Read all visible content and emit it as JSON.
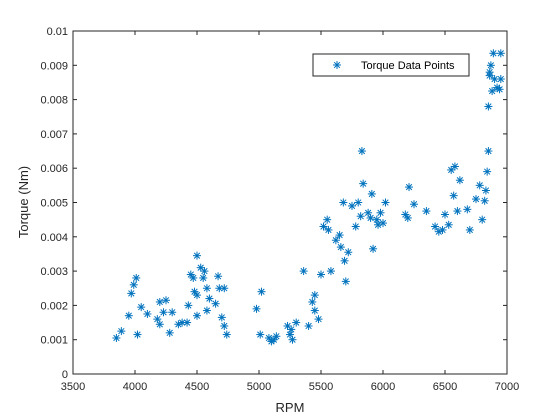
{
  "chart_data": {
    "type": "scatter",
    "title": "",
    "xlabel": "RPM",
    "ylabel": "Torque (Nm)",
    "xlim": [
      3500,
      7000
    ],
    "ylim": [
      0,
      0.01
    ],
    "xticks": [
      3500,
      4000,
      4500,
      5000,
      5500,
      6000,
      6500,
      7000
    ],
    "xtick_labels": [
      "3500",
      "4000",
      "4500",
      "5000",
      "5500",
      "6000",
      "6500",
      "7000"
    ],
    "yticks": [
      0,
      0.001,
      0.002,
      0.003,
      0.004,
      0.005,
      0.006,
      0.007,
      0.008,
      0.009,
      0.01
    ],
    "ytick_labels": [
      "0",
      "0.001",
      "0.002",
      "0.003",
      "0.004",
      "0.005",
      "0.006",
      "0.007",
      "0.008",
      "0.009",
      "0.01"
    ],
    "grid": false,
    "legend_position": "top-right",
    "marker": "asterisk",
    "series": [
      {
        "name": "Torque Data Points",
        "color": "#0072BD",
        "points": [
          [
            3850,
            0.00105
          ],
          [
            3890,
            0.00125
          ],
          [
            3950,
            0.0017
          ],
          [
            3970,
            0.00235
          ],
          [
            3990,
            0.0026
          ],
          [
            4010,
            0.0028
          ],
          [
            4020,
            0.00115
          ],
          [
            4050,
            0.00195
          ],
          [
            4100,
            0.00175
          ],
          [
            4180,
            0.0016
          ],
          [
            4200,
            0.0021
          ],
          [
            4200,
            0.00145
          ],
          [
            4230,
            0.0018
          ],
          [
            4250,
            0.00215
          ],
          [
            4280,
            0.0012
          ],
          [
            4300,
            0.0018
          ],
          [
            4350,
            0.00145
          ],
          [
            4380,
            0.0015
          ],
          [
            4420,
            0.0015
          ],
          [
            4430,
            0.002
          ],
          [
            4450,
            0.0029
          ],
          [
            4470,
            0.0028
          ],
          [
            4480,
            0.0024
          ],
          [
            4500,
            0.0017
          ],
          [
            4500,
            0.0023
          ],
          [
            4500,
            0.00345
          ],
          [
            4530,
            0.0031
          ],
          [
            4550,
            0.0028
          ],
          [
            4560,
            0.003
          ],
          [
            4580,
            0.0025
          ],
          [
            4580,
            0.00185
          ],
          [
            4600,
            0.0022
          ],
          [
            4650,
            0.00205
          ],
          [
            4670,
            0.00285
          ],
          [
            4680,
            0.0025
          ],
          [
            4700,
            0.00165
          ],
          [
            4720,
            0.0014
          ],
          [
            4720,
            0.0025
          ],
          [
            4740,
            0.00115
          ],
          [
            4980,
            0.0019
          ],
          [
            5020,
            0.0024
          ],
          [
            5010,
            0.00115
          ],
          [
            5080,
            0.00105
          ],
          [
            5100,
            0.00095
          ],
          [
            5120,
            0.001
          ],
          [
            5140,
            0.0011
          ],
          [
            5230,
            0.0014
          ],
          [
            5250,
            0.00115
          ],
          [
            5260,
            0.0013
          ],
          [
            5270,
            0.001
          ],
          [
            5300,
            0.0015
          ],
          [
            5360,
            0.003
          ],
          [
            5400,
            0.0014
          ],
          [
            5430,
            0.0021
          ],
          [
            5450,
            0.0023
          ],
          [
            5450,
            0.00185
          ],
          [
            5480,
            0.0016
          ],
          [
            5500,
            0.0029
          ],
          [
            5520,
            0.0043
          ],
          [
            5550,
            0.0045
          ],
          [
            5560,
            0.0042
          ],
          [
            5580,
            0.003
          ],
          [
            5620,
            0.0039
          ],
          [
            5650,
            0.00405
          ],
          [
            5660,
            0.0037
          ],
          [
            5680,
            0.005
          ],
          [
            5690,
            0.0033
          ],
          [
            5700,
            0.0027
          ],
          [
            5720,
            0.00355
          ],
          [
            5750,
            0.0049
          ],
          [
            5780,
            0.0043
          ],
          [
            5800,
            0.005
          ],
          [
            5820,
            0.0046
          ],
          [
            5830,
            0.0065
          ],
          [
            5840,
            0.00555
          ],
          [
            5880,
            0.0047
          ],
          [
            5900,
            0.00455
          ],
          [
            5910,
            0.00525
          ],
          [
            5920,
            0.00365
          ],
          [
            5950,
            0.0045
          ],
          [
            5960,
            0.00435
          ],
          [
            5980,
            0.0047
          ],
          [
            6000,
            0.0044
          ],
          [
            6020,
            0.005
          ],
          [
            6180,
            0.00465
          ],
          [
            6200,
            0.00455
          ],
          [
            6210,
            0.00545
          ],
          [
            6250,
            0.00495
          ],
          [
            6350,
            0.00475
          ],
          [
            6420,
            0.0043
          ],
          [
            6450,
            0.00415
          ],
          [
            6480,
            0.0042
          ],
          [
            6500,
            0.00465
          ],
          [
            6530,
            0.00435
          ],
          [
            6550,
            0.00595
          ],
          [
            6570,
            0.0052
          ],
          [
            6580,
            0.00605
          ],
          [
            6600,
            0.00475
          ],
          [
            6620,
            0.00565
          ],
          [
            6680,
            0.0048
          ],
          [
            6700,
            0.0042
          ],
          [
            6750,
            0.0051
          ],
          [
            6780,
            0.0055
          ],
          [
            6800,
            0.0045
          ],
          [
            6820,
            0.00505
          ],
          [
            6830,
            0.00535
          ],
          [
            6840,
            0.0059
          ],
          [
            6850,
            0.0065
          ],
          [
            6850,
            0.0078
          ],
          [
            6860,
            0.0087
          ],
          [
            6860,
            0.0088
          ],
          [
            6870,
            0.009
          ],
          [
            6880,
            0.00825
          ],
          [
            6890,
            0.00935
          ],
          [
            6900,
            0.0086
          ],
          [
            6920,
            0.00835
          ],
          [
            6940,
            0.0083
          ],
          [
            6950,
            0.00935
          ],
          [
            6950,
            0.0086
          ]
        ]
      }
    ]
  }
}
